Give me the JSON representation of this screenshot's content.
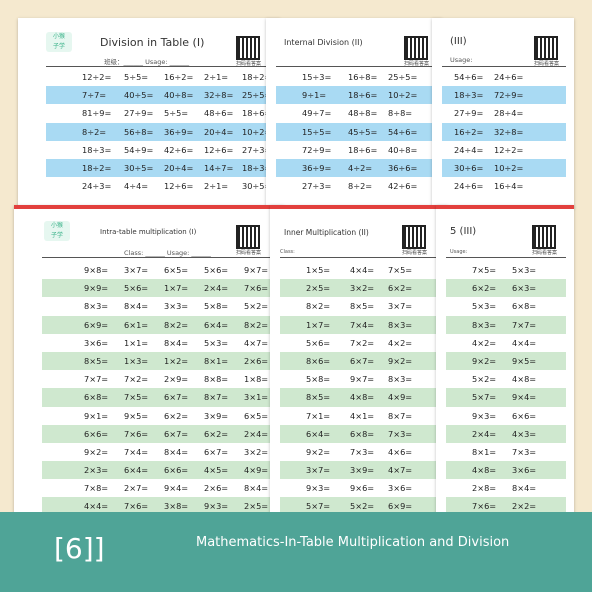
{
  "sheets": {
    "top_left": {
      "title": "Division in Table (I)",
      "sub": "班级：______  Usage: ______",
      "qr_caption": "扫码看答案",
      "rows": [
        [
          "12÷2=",
          "5÷5=",
          "16÷2=",
          "2÷1=",
          "18÷2="
        ],
        [
          "7÷7=",
          "40÷5=",
          "40÷8=",
          "32÷8=",
          "25÷5="
        ],
        [
          "81÷9=",
          "27÷9=",
          "5÷5=",
          "48÷6=",
          "18÷6="
        ],
        [
          "8÷2=",
          "56÷8=",
          "36÷9=",
          "20÷4=",
          "10÷2="
        ],
        [
          "18÷3=",
          "54÷9=",
          "42÷6=",
          "12÷6=",
          "27÷3="
        ],
        [
          "18÷2=",
          "30÷5=",
          "20÷4=",
          "14÷7=",
          "18÷3="
        ],
        [
          "24÷3=",
          "4÷4=",
          "12÷6=",
          "2÷1=",
          "30÷5="
        ]
      ]
    },
    "top_mid": {
      "title": "Internal Division (II)",
      "qr_caption": "扫码看答案",
      "rows": [
        [
          "15÷3=",
          "16÷8=",
          "25÷5="
        ],
        [
          "9÷1=",
          "18÷6=",
          "10÷2="
        ],
        [
          "49÷7=",
          "48÷8=",
          "8÷8="
        ],
        [
          "15÷5=",
          "45÷5=",
          "54÷6="
        ],
        [
          "72÷9=",
          "18÷6=",
          "40÷8="
        ],
        [
          "36÷9=",
          "4÷2=",
          "36÷6="
        ],
        [
          "27÷3=",
          "8÷2=",
          "42÷6="
        ]
      ]
    },
    "top_right": {
      "title": "(III)",
      "sub": "Usage:",
      "qr_caption": "扫码看答案",
      "rows": [
        [
          "54÷6=",
          "24÷6="
        ],
        [
          "18÷3=",
          "72÷9="
        ],
        [
          "27÷9=",
          "28÷4="
        ],
        [
          "16÷2=",
          "32÷8="
        ],
        [
          "24÷4=",
          "12÷2="
        ],
        [
          "30÷6=",
          "10÷2="
        ],
        [
          "24÷6=",
          "16÷4="
        ]
      ]
    },
    "bottom_left": {
      "title": "Intra-table multiplication (I)",
      "sub": "Class: ______  Usage: ______",
      "qr_caption": "扫码看答案",
      "rows": [
        [
          "9×8=",
          "3×7=",
          "6×5=",
          "5×6=",
          "9×7="
        ],
        [
          "9×9=",
          "5×6=",
          "1×7=",
          "2×4=",
          "7×6="
        ],
        [
          "8×3=",
          "8×4=",
          "3×3=",
          "5×8=",
          "5×2="
        ],
        [
          "6×9=",
          "6×1=",
          "8×2=",
          "6×4=",
          "8×2="
        ],
        [
          "3×6=",
          "1×1=",
          "8×4=",
          "5×3=",
          "4×7="
        ],
        [
          "8×5=",
          "1×3=",
          "1×2=",
          "8×1=",
          "2×6="
        ],
        [
          "7×7=",
          "7×2=",
          "2×9=",
          "8×8=",
          "1×8="
        ],
        [
          "6×8=",
          "7×5=",
          "6×7=",
          "8×7=",
          "3×1="
        ],
        [
          "9×1=",
          "9×5=",
          "6×2=",
          "3×9=",
          "6×5="
        ],
        [
          "6×6=",
          "7×6=",
          "6×7=",
          "6×2=",
          "2×4="
        ],
        [
          "9×2=",
          "7×4=",
          "8×4=",
          "6×7=",
          "3×2="
        ],
        [
          "2×3=",
          "6×4=",
          "6×6=",
          "4×5=",
          "4×9="
        ],
        [
          "7×8=",
          "2×7=",
          "9×4=",
          "2×6=",
          "8×4="
        ],
        [
          "4×4=",
          "7×6=",
          "3×8=",
          "9×3=",
          "2×5="
        ]
      ]
    },
    "bottom_mid": {
      "title": "Inner Multiplication (II)",
      "sub": "Class:",
      "qr_caption": "扫码看答案",
      "rows": [
        [
          "1×5=",
          "4×4=",
          "7×5="
        ],
        [
          "2×5=",
          "3×2=",
          "6×2="
        ],
        [
          "8×2=",
          "8×5=",
          "3×7="
        ],
        [
          "1×7=",
          "7×4=",
          "8×3="
        ],
        [
          "5×6=",
          "7×2=",
          "4×2="
        ],
        [
          "8×6=",
          "6×7=",
          "9×2="
        ],
        [
          "5×8=",
          "9×7=",
          "8×3="
        ],
        [
          "8×5=",
          "4×8=",
          "4×9="
        ],
        [
          "7×1=",
          "4×1=",
          "8×7="
        ],
        [
          "6×4=",
          "6×8=",
          "7×3="
        ],
        [
          "9×2=",
          "7×3=",
          "4×6="
        ],
        [
          "3×7=",
          "3×9=",
          "4×7="
        ],
        [
          "9×3=",
          "9×6=",
          "3×6="
        ],
        [
          "5×7=",
          "5×2=",
          "6×9="
        ]
      ]
    },
    "bottom_right": {
      "title": "5 (III)",
      "sub": "Usage:",
      "qr_caption": "扫码看答案",
      "rows": [
        [
          "7×5=",
          "5×3="
        ],
        [
          "6×2=",
          "6×3="
        ],
        [
          "5×3=",
          "6×8="
        ],
        [
          "8×3=",
          "7×7="
        ],
        [
          "4×2=",
          "4×4="
        ],
        [
          "9×2=",
          "9×5="
        ],
        [
          "5×2=",
          "4×8="
        ],
        [
          "5×7=",
          "9×4="
        ],
        [
          "9×3=",
          "6×6="
        ],
        [
          "2×4=",
          "4×3="
        ],
        [
          "8×1=",
          "7×3="
        ],
        [
          "4×8=",
          "3×6="
        ],
        [
          "2×8=",
          "8×4="
        ],
        [
          "7×6=",
          "2×2="
        ]
      ]
    }
  },
  "footer": {
    "badge": "[6]]",
    "caption": "Mathematics-In-Table Multiplication and Division"
  },
  "colors": {
    "background": "#f5e9cf",
    "accent_red": "#e2403d",
    "division_row": "#a9daf3",
    "multiplication_row": "#cfe8cf",
    "footer": "#4fa497"
  }
}
